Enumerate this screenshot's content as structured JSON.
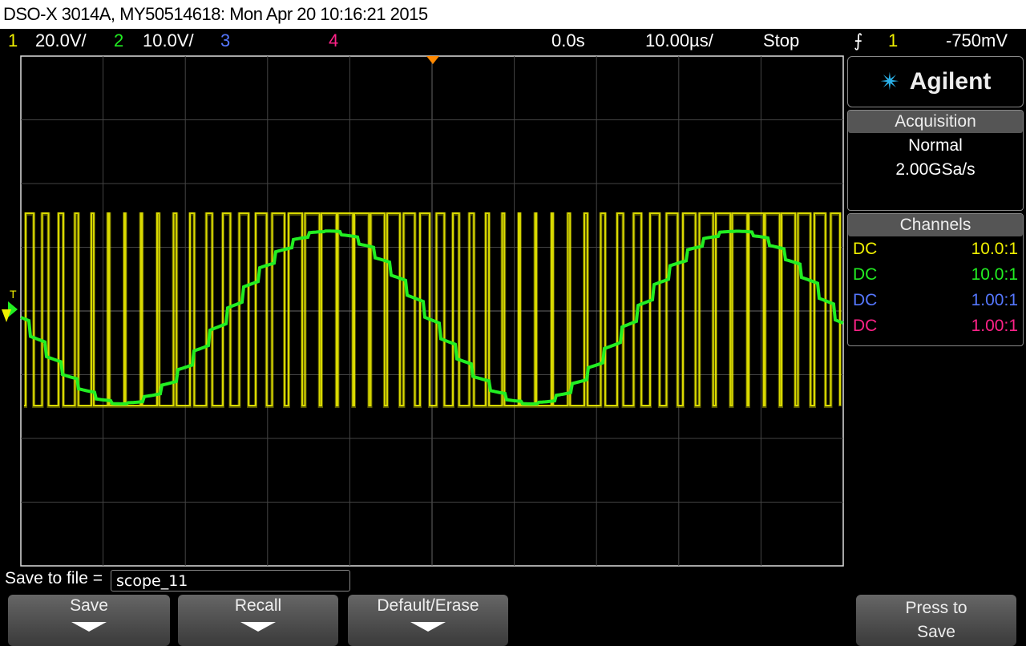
{
  "title": "DSO-X 3014A, MY50514618: Mon Apr 20 10:16:21 2015",
  "status": {
    "ch1_num": "1",
    "ch1_scale": "20.0V/",
    "ch2_num": "2",
    "ch2_scale": "10.0V/",
    "ch3_num": "3",
    "ch4_num": "4",
    "time_delay": "0.0s",
    "timebase": "10.00µs/",
    "run_state": "Stop",
    "trigger_icon": "rising-edge-icon",
    "trigger_source": "1",
    "trigger_level": "-750mV"
  },
  "colors": {
    "ch1": "#f0f000",
    "ch2": "#22ee22",
    "ch3": "#5577ff",
    "ch4": "#ff2288",
    "trigger_marker": "#ff8800"
  },
  "panel": {
    "logo": "Agilent",
    "acquisition_header": "Acquisition",
    "acq_mode": "Normal",
    "sample_rate": "2.00GSa/s",
    "channels_header": "Channels",
    "channels": [
      {
        "coupling": "DC",
        "probe": "10.0:1"
      },
      {
        "coupling": "DC",
        "probe": "10.0:1"
      },
      {
        "coupling": "DC",
        "probe": "1.00:1"
      },
      {
        "coupling": "DC",
        "probe": "1.00:1"
      }
    ]
  },
  "softkeys": {
    "file_label": "Save to file =",
    "file_value": "scope_11",
    "save": "Save",
    "recall": "Recall",
    "default_erase": "Default/Erase",
    "press_to_save_1": "Press to",
    "press_to_save_2": "Save"
  }
}
